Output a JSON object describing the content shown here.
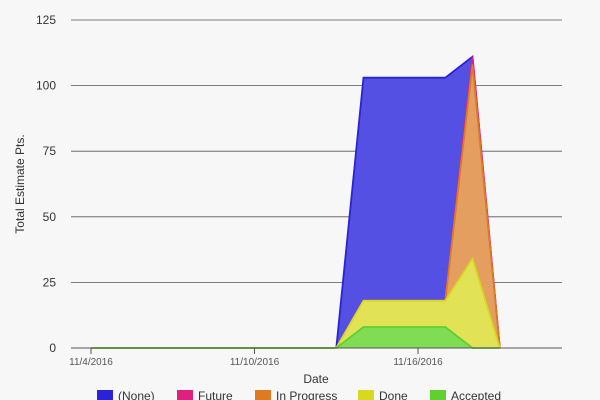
{
  "chart_data": {
    "type": "area",
    "stacking": "cumulative",
    "title": "",
    "xlabel": "Date",
    "ylabel": "Total Estimate Pts.",
    "ylim": [
      0,
      125
    ],
    "y_ticks": [
      0,
      25,
      50,
      75,
      100,
      125
    ],
    "x_range": [
      "2016-11-04",
      "2016-11-21"
    ],
    "x_ticks": [
      {
        "date": "2016-11-04",
        "label": "11/4/2016"
      },
      {
        "date": "2016-11-10",
        "label": "11/10/2016"
      },
      {
        "date": "2016-11-16",
        "label": "11/16/2016"
      }
    ],
    "grid": true,
    "legend_position": "bottom",
    "x": [
      "2016-11-04",
      "2016-11-13",
      "2016-11-14",
      "2016-11-15",
      "2016-11-16",
      "2016-11-17",
      "2016-11-18",
      "2016-11-19"
    ],
    "series": [
      {
        "name": "(None)",
        "color": "#2a22d6",
        "fill": "#5550e4",
        "cumulative": [
          0,
          0,
          103,
          103,
          103,
          103,
          111,
          0
        ]
      },
      {
        "name": "Future",
        "color": "#e0207e",
        "fill": "#e0207e",
        "cumulative": [
          0,
          0,
          18,
          18,
          18,
          18,
          111,
          0
        ]
      },
      {
        "name": "In Progress",
        "color": "#e07a22",
        "fill": "#e49e5f",
        "cumulative": [
          0,
          0,
          18,
          18,
          18,
          18,
          108,
          0
        ]
      },
      {
        "name": "Done",
        "color": "#d8d822",
        "fill": "#e2e256",
        "cumulative": [
          0,
          0,
          18,
          18,
          18,
          18,
          34,
          0
        ]
      },
      {
        "name": "Accepted",
        "color": "#60d030",
        "fill": "#80dc52",
        "cumulative": [
          0,
          0,
          8,
          8,
          8,
          8,
          0,
          0
        ]
      }
    ]
  }
}
